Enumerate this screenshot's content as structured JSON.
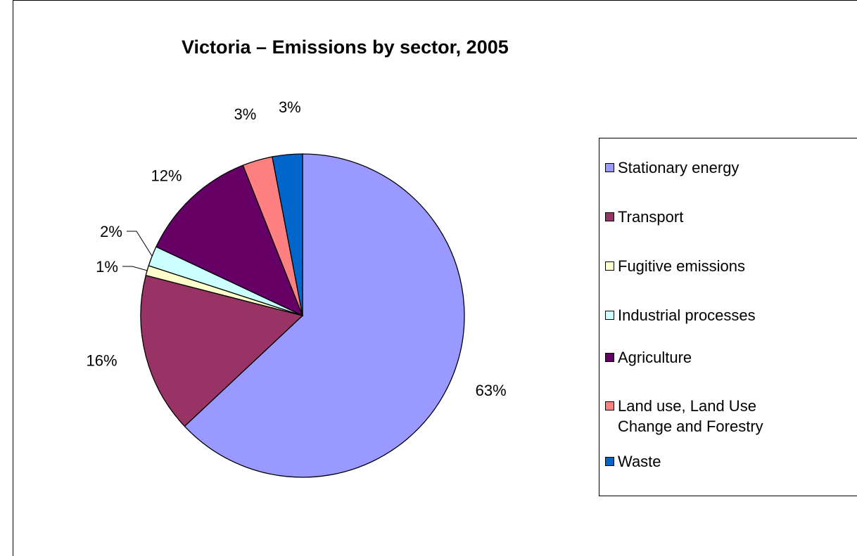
{
  "chart_data": {
    "type": "pie",
    "title": "Victoria – Emissions by sector, 2005",
    "categories": [
      "Stationary energy",
      "Transport",
      "Fugitive emissions",
      "Industrial processes",
      "Agriculture",
      "Land use, Land Use Change and Forestry",
      "Waste"
    ],
    "values": [
      63,
      16,
      1,
      2,
      12,
      3,
      3
    ],
    "data_labels": [
      "63%",
      "16%",
      "1%",
      "2%",
      "12%",
      "3%",
      "3%"
    ],
    "colors": [
      "#9999ff",
      "#993366",
      "#ffffcc",
      "#ccffff",
      "#660066",
      "#ff8080",
      "#0066cc"
    ],
    "legend_position": "right"
  }
}
